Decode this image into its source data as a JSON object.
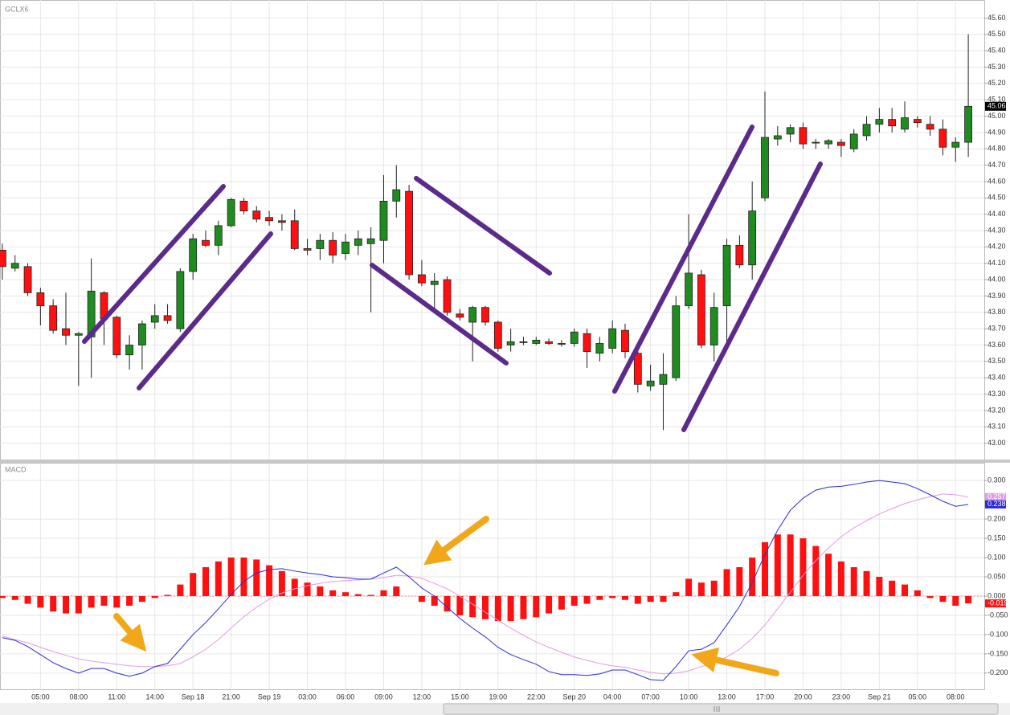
{
  "chart_data": [
    {
      "type": "candlestick",
      "title": "GCLX6",
      "up_color": "#1e8c1e",
      "down_color": "#ff1010",
      "grid": true,
      "ylim": [
        42.9,
        45.71
      ],
      "yticks": [
        {
          "value": 43.0,
          "label": "43.00"
        },
        {
          "value": 43.1,
          "label": "43.10"
        },
        {
          "value": 43.2,
          "label": "43.20"
        },
        {
          "value": 43.3,
          "label": "43.30"
        },
        {
          "value": 43.4,
          "label": "43.40"
        },
        {
          "value": 43.5,
          "label": "43.50"
        },
        {
          "value": 43.6,
          "label": "43.60"
        },
        {
          "value": 43.7,
          "label": "43.70"
        },
        {
          "value": 43.8,
          "label": "43.80"
        },
        {
          "value": 43.9,
          "label": "43.90"
        },
        {
          "value": 44.0,
          "label": "44.00"
        },
        {
          "value": 44.1,
          "label": "44.10"
        },
        {
          "value": 44.2,
          "label": "44.20"
        },
        {
          "value": 44.3,
          "label": "44.30"
        },
        {
          "value": 44.4,
          "label": "44.40"
        },
        {
          "value": 44.5,
          "label": "44.50"
        },
        {
          "value": 44.6,
          "label": "44.60"
        },
        {
          "value": 44.7,
          "label": "44.70"
        },
        {
          "value": 44.8,
          "label": "44.80"
        },
        {
          "value": 44.9,
          "label": "44.90"
        },
        {
          "value": 45.0,
          "label": "45.00"
        },
        {
          "value": 45.1,
          "label": "45.10"
        },
        {
          "value": 45.2,
          "label": "45.20"
        },
        {
          "value": 45.3,
          "label": "45.30"
        },
        {
          "value": 45.4,
          "label": "45.40"
        },
        {
          "value": 45.5,
          "label": "45.50"
        },
        {
          "value": 45.6,
          "label": "45.60"
        }
      ],
      "open": [
        44.18,
        44.07,
        44.08,
        43.92,
        43.84,
        43.7,
        43.66,
        43.65,
        43.92,
        43.77,
        43.54,
        43.6,
        43.74,
        43.78,
        43.7,
        44.05,
        44.24,
        44.21,
        44.33,
        44.48,
        44.42,
        44.38,
        44.36,
        44.36,
        44.19,
        44.19,
        44.24,
        44.16,
        44.21,
        44.22,
        44.24,
        44.48,
        44.54,
        44.03,
        43.97,
        44.0,
        43.79,
        43.74,
        43.83,
        43.74,
        43.6,
        43.62,
        43.61,
        43.62,
        43.61,
        43.61,
        43.67,
        43.55,
        43.58,
        43.69,
        43.55,
        43.35,
        43.36,
        43.4,
        43.84,
        44.03,
        43.6,
        43.84,
        44.21,
        44.09,
        44.5,
        44.86,
        44.89,
        44.93,
        44.84,
        44.83,
        44.84,
        44.8,
        44.88,
        44.95,
        44.98,
        44.92,
        44.98,
        44.95,
        44.92,
        44.81,
        44.84
      ],
      "high": [
        44.22,
        44.15,
        44.1,
        43.95,
        43.88,
        43.92,
        43.68,
        44.13,
        43.93,
        43.78,
        43.66,
        43.75,
        43.85,
        43.85,
        44.07,
        44.28,
        44.3,
        44.36,
        44.5,
        44.5,
        44.45,
        44.42,
        44.4,
        44.43,
        44.25,
        44.28,
        44.29,
        44.28,
        44.3,
        44.32,
        44.64,
        44.7,
        44.58,
        44.12,
        44.04,
        44.02,
        43.82,
        43.84,
        43.84,
        43.75,
        43.7,
        43.65,
        43.65,
        43.64,
        43.63,
        43.7,
        43.7,
        43.65,
        43.75,
        43.73,
        43.57,
        43.48,
        43.55,
        43.9,
        44.4,
        44.06,
        43.92,
        44.25,
        44.27,
        44.6,
        45.15,
        44.94,
        44.95,
        44.96,
        44.86,
        44.86,
        44.86,
        44.92,
        45.0,
        45.05,
        45.05,
        45.09,
        45.0,
        45.0,
        44.98,
        44.87,
        45.5
      ],
      "low": [
        44.0,
        44.05,
        43.9,
        43.72,
        43.67,
        43.6,
        43.35,
        43.4,
        43.6,
        43.52,
        43.45,
        43.45,
        43.7,
        43.73,
        43.68,
        44.0,
        44.2,
        44.15,
        44.32,
        44.4,
        44.35,
        44.33,
        44.3,
        44.18,
        44.15,
        44.12,
        44.1,
        44.12,
        44.15,
        43.8,
        44.1,
        44.38,
        44.0,
        43.96,
        43.8,
        43.78,
        43.75,
        43.5,
        43.72,
        43.56,
        43.56,
        43.6,
        43.6,
        43.6,
        43.59,
        43.59,
        43.46,
        43.5,
        43.55,
        43.52,
        43.31,
        43.32,
        43.08,
        43.38,
        43.82,
        43.58,
        43.5,
        43.6,
        44.07,
        44.0,
        44.48,
        44.82,
        44.84,
        44.8,
        44.8,
        44.8,
        44.75,
        44.78,
        44.85,
        44.9,
        44.9,
        44.9,
        44.93,
        44.88,
        44.76,
        44.72,
        44.75
      ],
      "close": [
        44.08,
        44.1,
        43.92,
        43.84,
        43.69,
        43.66,
        43.67,
        43.93,
        43.76,
        43.54,
        43.6,
        43.73,
        43.78,
        43.75,
        44.05,
        44.25,
        44.21,
        44.33,
        44.49,
        44.42,
        44.37,
        44.36,
        44.35,
        44.19,
        44.18,
        44.24,
        44.15,
        44.23,
        44.25,
        44.25,
        44.48,
        44.55,
        44.03,
        43.98,
        43.99,
        43.8,
        43.77,
        43.83,
        43.74,
        43.58,
        43.62,
        43.62,
        43.63,
        43.61,
        43.61,
        43.68,
        43.56,
        43.61,
        43.7,
        43.56,
        43.36,
        43.38,
        43.42,
        43.84,
        44.04,
        43.6,
        43.83,
        44.21,
        44.09,
        44.42,
        44.87,
        44.88,
        44.93,
        44.83,
        44.84,
        44.85,
        44.82,
        44.89,
        44.95,
        44.98,
        44.94,
        44.99,
        44.96,
        44.92,
        44.81,
        44.84,
        45.06
      ]
    },
    {
      "type": "line",
      "title": "MACD",
      "grid": true,
      "ylim": [
        -0.242,
        0.342
      ],
      "yticks": [
        {
          "value": -0.2,
          "label": "-0.200"
        },
        {
          "value": -0.15,
          "label": "-0.150"
        },
        {
          "value": -0.1,
          "label": "-0.100"
        },
        {
          "value": -0.05,
          "label": "-0.050"
        },
        {
          "value": 0,
          "label": "0.000"
        },
        {
          "value": 0.05,
          "label": "0.050"
        },
        {
          "value": 0.1,
          "label": "0.100"
        },
        {
          "value": 0.15,
          "label": "0.150"
        },
        {
          "value": 0.2,
          "label": "0.200"
        },
        {
          "value": 0.3,
          "label": "0.300"
        }
      ],
      "categories": [
        null,
        null,
        null,
        "05:00",
        null,
        null,
        "08:00",
        null,
        null,
        "11:00",
        null,
        null,
        "14:00",
        null,
        null,
        "Sep 18",
        null,
        null,
        "21:00",
        null,
        null,
        "Sep 19",
        null,
        null,
        "03:00",
        null,
        null,
        "06:00",
        null,
        null,
        "09:00",
        null,
        null,
        "12:00",
        null,
        null,
        "15:00",
        null,
        null,
        "19:00",
        null,
        null,
        "22:00",
        null,
        null,
        "Sep 20",
        null,
        null,
        "04:00",
        null,
        null,
        "07:00",
        null,
        null,
        "10:00",
        null,
        null,
        "13:00",
        null,
        null,
        "17:00",
        null,
        null,
        "20:00",
        null,
        null,
        "23:00",
        null,
        null,
        "Sep 21",
        null,
        null,
        "05:00",
        null,
        null,
        "08:00",
        null
      ],
      "bars": {
        "color": "#ff1010",
        "values": [
          -0.005,
          -0.01,
          -0.02,
          -0.03,
          -0.04,
          -0.045,
          -0.045,
          -0.03,
          -0.025,
          -0.03,
          -0.025,
          -0.015,
          -0.005,
          0.003,
          0.03,
          0.06,
          0.075,
          0.09,
          0.1,
          0.1,
          0.095,
          0.08,
          0.065,
          0.045,
          0.035,
          0.025,
          0.015,
          0.01,
          0.005,
          0.003,
          0.015,
          0.025,
          0,
          -0.015,
          -0.025,
          -0.04,
          -0.05,
          -0.055,
          -0.06,
          -0.065,
          -0.065,
          -0.06,
          -0.055,
          -0.045,
          -0.035,
          -0.025,
          -0.02,
          -0.01,
          -0.005,
          -0.01,
          -0.02,
          -0.015,
          -0.015,
          0.01,
          0.045,
          0.035,
          0.04,
          0.07,
          0.075,
          0.1,
          0.14,
          0.16,
          0.16,
          0.15,
          0.13,
          0.11,
          0.09,
          0.075,
          0.065,
          0.05,
          0.04,
          0.03,
          0.015,
          -0.005,
          -0.015,
          -0.025,
          -0.019
        ]
      },
      "series": [
        {
          "color": "#e39be3",
          "values": [
            -0.104,
            -0.113,
            -0.121,
            -0.133,
            -0.144,
            -0.154,
            -0.163,
            -0.169,
            -0.173,
            -0.177,
            -0.181,
            -0.183,
            -0.183,
            -0.181,
            -0.175,
            -0.158,
            -0.138,
            -0.113,
            -0.083,
            -0.054,
            -0.029,
            -0.008,
            0.008,
            0.019,
            0.027,
            0.033,
            0.038,
            0.04,
            0.042,
            0.044,
            0.048,
            0.054,
            0.052,
            0.046,
            0.033,
            0.019,
            0,
            -0.021,
            -0.042,
            -0.063,
            -0.083,
            -0.102,
            -0.119,
            -0.133,
            -0.146,
            -0.158,
            -0.167,
            -0.175,
            -0.181,
            -0.185,
            -0.192,
            -0.198,
            -0.202,
            -0.2,
            -0.194,
            -0.183,
            -0.173,
            -0.158,
            -0.138,
            -0.11,
            -0.075,
            -0.033,
            0.01,
            0.054,
            0.092,
            0.125,
            0.154,
            0.177,
            0.196,
            0.213,
            0.227,
            0.24,
            0.25,
            0.258,
            0.265,
            0.263,
            0.257
          ]
        },
        {
          "color": "#2a2ad8",
          "values": [
            -0.108,
            -0.115,
            -0.131,
            -0.152,
            -0.173,
            -0.188,
            -0.2,
            -0.188,
            -0.188,
            -0.2,
            -0.208,
            -0.2,
            -0.183,
            -0.175,
            -0.138,
            -0.1,
            -0.069,
            -0.033,
            0.004,
            0.038,
            0.06,
            0.069,
            0.071,
            0.065,
            0.06,
            0.056,
            0.05,
            0.048,
            0.044,
            0.044,
            0.06,
            0.075,
            0.05,
            0.021,
            0,
            -0.029,
            -0.058,
            -0.083,
            -0.106,
            -0.133,
            -0.152,
            -0.165,
            -0.177,
            -0.196,
            -0.204,
            -0.204,
            -0.206,
            -0.202,
            -0.192,
            -0.192,
            -0.204,
            -0.217,
            -0.219,
            -0.183,
            -0.142,
            -0.138,
            -0.121,
            -0.075,
            -0.027,
            0.035,
            0.108,
            0.171,
            0.223,
            0.254,
            0.275,
            0.283,
            0.285,
            0.29,
            0.296,
            0.3,
            0.296,
            0.292,
            0.279,
            0.263,
            0.246,
            0.233,
            0.238
          ]
        }
      ]
    }
  ]
}
